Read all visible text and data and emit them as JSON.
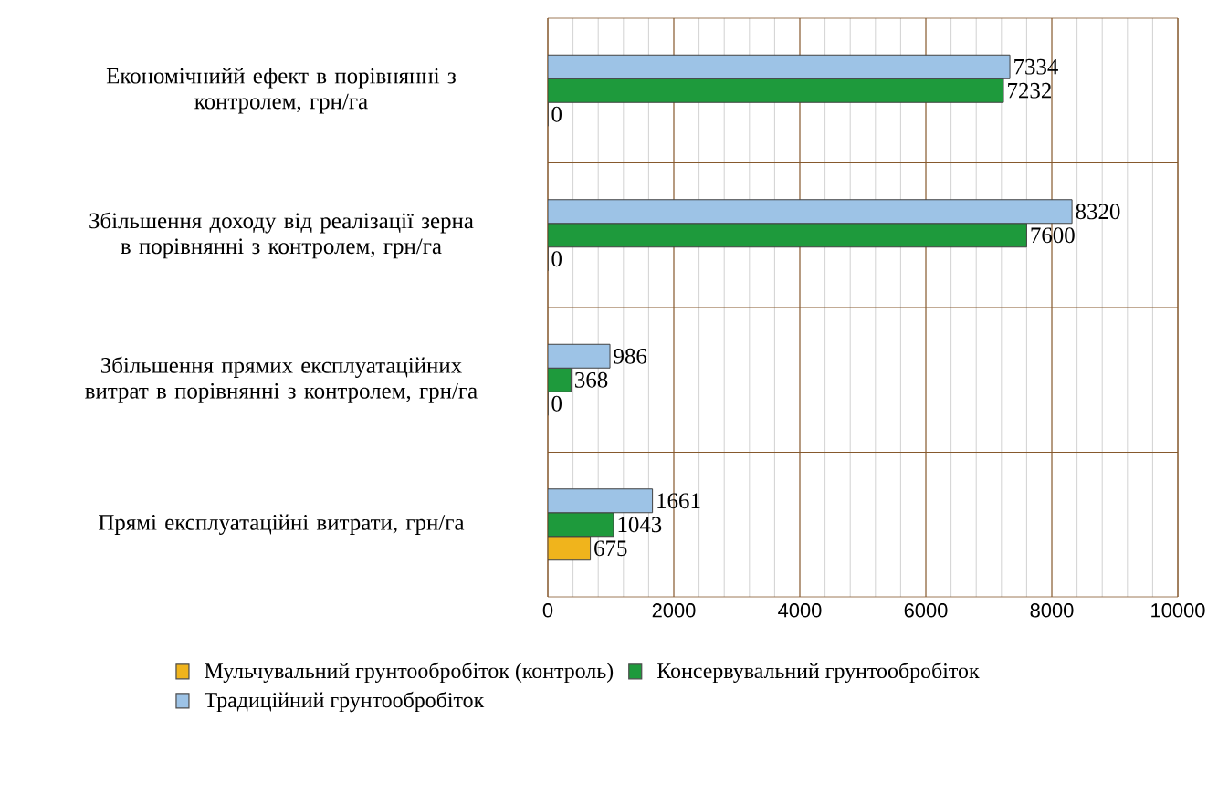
{
  "chart_data": {
    "type": "bar",
    "orientation": "horizontal",
    "categories": [
      "Економічнийй ефект в порівнянні з\nконтролем, грн/га",
      "Збільшення доходу від реалізації зерна\nв порівнянні з контролем, грн/га",
      "Збільшення прямих експлуатаційних\nвитрат в порівнянні з контролем, грн/га",
      "Прямі експлуатаційні витрати, грн/га"
    ],
    "series": [
      {
        "name": "Мульчувальний грунтообробіток (контроль)",
        "color": "#f0b41c",
        "values": [
          0,
          0,
          0,
          675
        ]
      },
      {
        "name": "Консервувальний грунтообробіток",
        "color": "#1e9a3c",
        "values": [
          7232,
          7600,
          368,
          1043
        ]
      },
      {
        "name": "Традиційний грунтообробіток",
        "color": "#9dc3e6",
        "values": [
          7334,
          8320,
          986,
          1661
        ]
      }
    ],
    "xlim": [
      0,
      10000
    ],
    "xticks": [
      0,
      2000,
      4000,
      6000,
      8000,
      10000
    ],
    "grid": true,
    "data_labels": true,
    "legend": "bottom"
  }
}
